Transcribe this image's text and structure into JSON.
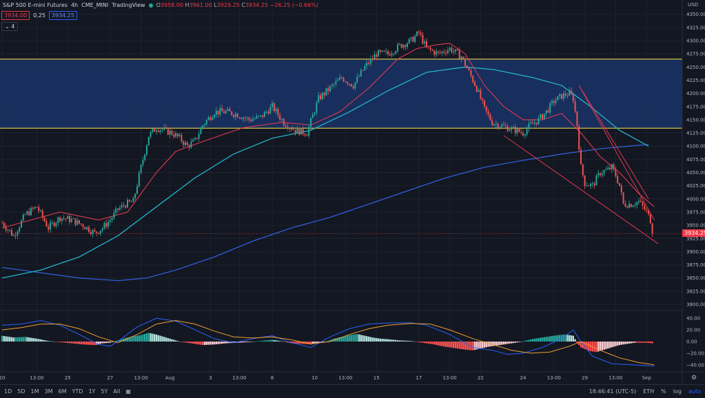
{
  "legend": {
    "symbol": "S&P 500 E-mini Futures",
    "interval": "4h",
    "exchange": "CME_MINI",
    "brand": "TradingView",
    "o_label": "O",
    "o": "3958.00",
    "h_label": "H",
    "h": "3961.00",
    "l_label": "L",
    "l": "3929.25",
    "c_label": "C",
    "c": "3934.25",
    "change": "−26.25 (−0.66%)"
  },
  "quote": {
    "bid": "3934.00",
    "spread": "0.25",
    "ask": "3934.25"
  },
  "indicators_toggle": "4",
  "currency": "USD",
  "last_price": "3934.25",
  "bottom": {
    "ranges": [
      "1D",
      "5D",
      "1M",
      "3M",
      "6M",
      "YTD",
      "1Y",
      "5Y",
      "All"
    ],
    "clock": "18:46:41 (UTC-5)",
    "session": "ETH",
    "percent": "%",
    "log": "log",
    "auto": "auto"
  },
  "colors": {
    "background": "#131722",
    "up": "#26a69a",
    "down": "#ef5350",
    "zone_fill": "#1a3266",
    "zone_line": "#e8d44d",
    "ema_short": "#e03a50",
    "ema_mid": "#22b4c8",
    "ema_long": "#2f5ed8",
    "macd_line": "#2962ff",
    "signal_line": "#f0a030",
    "wedge": "#e03a50"
  },
  "chart_data": {
    "type": "candlestick",
    "price_axis": {
      "ylim": [
        3787,
        4377
      ],
      "ticks": [
        3800,
        3825,
        3850,
        3875,
        3900,
        3925,
        3950,
        3975,
        4000,
        4025,
        4050,
        4075,
        4100,
        4125,
        4150,
        4175,
        4200,
        4225,
        4250,
        4275,
        4300,
        4325,
        4350
      ]
    },
    "macd_axis": {
      "ylim": [
        -52,
        52
      ],
      "ticks": [
        40,
        20,
        0,
        -20,
        -40
      ],
      "tick_labels": [
        "40.00",
        "20.00",
        "0.00",
        "−20.00",
        "−40.00"
      ]
    },
    "x_ticks": [
      {
        "label": "20",
        "bar": 0
      },
      {
        "label": "13:00",
        "bar": 18
      },
      {
        "label": "25",
        "bar": 34
      },
      {
        "label": "27",
        "bar": 56
      },
      {
        "label": "13:00",
        "bar": 72
      },
      {
        "label": "Aug",
        "bar": 87
      },
      {
        "label": "3",
        "bar": 108
      },
      {
        "label": "13:00",
        "bar": 123
      },
      {
        "label": "8",
        "bar": 140
      },
      {
        "label": "10",
        "bar": 162
      },
      {
        "label": "13:00",
        "bar": 178
      },
      {
        "label": "15",
        "bar": 194
      },
      {
        "label": "17",
        "bar": 216
      },
      {
        "label": "13:00",
        "bar": 232
      },
      {
        "label": "22",
        "bar": 248
      },
      {
        "label": "24",
        "bar": 270
      },
      {
        "label": "13:00",
        "bar": 286
      },
      {
        "label": "29",
        "bar": 302
      },
      {
        "label": "13:00",
        "bar": 318
      },
      {
        "label": "Sep",
        "bar": 334
      }
    ],
    "zone": {
      "top": 4265,
      "bottom": 4134
    },
    "anchors": [
      [
        0,
        3955
      ],
      [
        6,
        3930
      ],
      [
        12,
        3970
      ],
      [
        18,
        3985
      ],
      [
        24,
        3945
      ],
      [
        30,
        3965
      ],
      [
        36,
        3960
      ],
      [
        42,
        3950
      ],
      [
        48,
        3935
      ],
      [
        52,
        3945
      ],
      [
        56,
        3960
      ],
      [
        60,
        3980
      ],
      [
        64,
        3990
      ],
      [
        68,
        3995
      ],
      [
        72,
        4060
      ],
      [
        76,
        4120
      ],
      [
        80,
        4135
      ],
      [
        84,
        4130
      ],
      [
        88,
        4125
      ],
      [
        92,
        4115
      ],
      [
        96,
        4100
      ],
      [
        100,
        4110
      ],
      [
        104,
        4140
      ],
      [
        110,
        4165
      ],
      [
        116,
        4165
      ],
      [
        122,
        4160
      ],
      [
        128,
        4150
      ],
      [
        134,
        4155
      ],
      [
        140,
        4175
      ],
      [
        146,
        4145
      ],
      [
        152,
        4130
      ],
      [
        158,
        4125
      ],
      [
        164,
        4190
      ],
      [
        170,
        4210
      ],
      [
        176,
        4230
      ],
      [
        182,
        4215
      ],
      [
        188,
        4250
      ],
      [
        194,
        4275
      ],
      [
        200,
        4275
      ],
      [
        206,
        4290
      ],
      [
        212,
        4300
      ],
      [
        216,
        4315
      ],
      [
        220,
        4285
      ],
      [
        226,
        4275
      ],
      [
        232,
        4285
      ],
      [
        238,
        4270
      ],
      [
        242,
        4240
      ],
      [
        246,
        4210
      ],
      [
        250,
        4170
      ],
      [
        254,
        4145
      ],
      [
        258,
        4140
      ],
      [
        262,
        4135
      ],
      [
        266,
        4130
      ],
      [
        270,
        4125
      ],
      [
        274,
        4140
      ],
      [
        278,
        4150
      ],
      [
        282,
        4165
      ],
      [
        286,
        4185
      ],
      [
        290,
        4195
      ],
      [
        294,
        4200
      ],
      [
        296,
        4190
      ],
      [
        298,
        4140
      ],
      [
        300,
        4060
      ],
      [
        302,
        4030
      ],
      [
        306,
        4025
      ],
      [
        310,
        4050
      ],
      [
        314,
        4055
      ],
      [
        316,
        4060
      ],
      [
        318,
        4045
      ],
      [
        320,
        4025
      ],
      [
        322,
        3990
      ],
      [
        326,
        3990
      ],
      [
        330,
        3995
      ],
      [
        334,
        3975
      ],
      [
        336,
        3960
      ],
      [
        337,
        3934
      ]
    ],
    "ema_short": [
      [
        0,
        3945
      ],
      [
        15,
        3960
      ],
      [
        30,
        3975
      ],
      [
        50,
        3960
      ],
      [
        65,
        3975
      ],
      [
        80,
        4050
      ],
      [
        90,
        4090
      ],
      [
        105,
        4110
      ],
      [
        125,
        4135
      ],
      [
        145,
        4145
      ],
      [
        160,
        4140
      ],
      [
        175,
        4165
      ],
      [
        190,
        4210
      ],
      [
        205,
        4265
      ],
      [
        215,
        4285
      ],
      [
        225,
        4292
      ],
      [
        232,
        4295
      ],
      [
        240,
        4275
      ],
      [
        250,
        4215
      ],
      [
        260,
        4175
      ],
      [
        270,
        4150
      ],
      [
        280,
        4150
      ],
      [
        290,
        4162
      ],
      [
        300,
        4125
      ],
      [
        310,
        4080
      ],
      [
        320,
        4050
      ],
      [
        330,
        4010
      ],
      [
        338,
        3985
      ]
    ],
    "ema_mid": [
      [
        0,
        3850
      ],
      [
        20,
        3865
      ],
      [
        40,
        3890
      ],
      [
        60,
        3930
      ],
      [
        80,
        3985
      ],
      [
        100,
        4040
      ],
      [
        120,
        4085
      ],
      [
        140,
        4115
      ],
      [
        160,
        4130
      ],
      [
        180,
        4165
      ],
      [
        200,
        4205
      ],
      [
        220,
        4240
      ],
      [
        240,
        4250
      ],
      [
        255,
        4245
      ],
      [
        275,
        4230
      ],
      [
        290,
        4215
      ],
      [
        305,
        4175
      ],
      [
        320,
        4130
      ],
      [
        335,
        4100
      ]
    ],
    "ema_long": [
      [
        0,
        3870
      ],
      [
        20,
        3860
      ],
      [
        40,
        3850
      ],
      [
        60,
        3845
      ],
      [
        75,
        3850
      ],
      [
        90,
        3865
      ],
      [
        110,
        3890
      ],
      [
        130,
        3920
      ],
      [
        150,
        3945
      ],
      [
        170,
        3965
      ],
      [
        190,
        3990
      ],
      [
        210,
        4015
      ],
      [
        230,
        4040
      ],
      [
        250,
        4060
      ],
      [
        270,
        4073
      ],
      [
        290,
        4085
      ],
      [
        310,
        4095
      ],
      [
        325,
        4100
      ],
      [
        335,
        4103
      ]
    ],
    "wedge_upper": [
      [
        299,
        4215
      ],
      [
        335,
        4000
      ]
    ],
    "wedge_upper2": [
      [
        299,
        4215
      ],
      [
        338,
        3960
      ]
    ],
    "wedge_lower": [
      [
        260,
        4120
      ],
      [
        340,
        3915
      ]
    ],
    "macd_hist": [
      [
        0,
        10
      ],
      [
        6,
        7
      ],
      [
        12,
        8
      ],
      [
        18,
        5
      ],
      [
        24,
        1
      ],
      [
        30,
        -1
      ],
      [
        36,
        -3
      ],
      [
        42,
        -5
      ],
      [
        48,
        -6
      ],
      [
        52,
        -3
      ],
      [
        56,
        -2
      ],
      [
        60,
        2
      ],
      [
        64,
        6
      ],
      [
        68,
        9
      ],
      [
        72,
        11
      ],
      [
        76,
        15
      ],
      [
        80,
        12
      ],
      [
        84,
        8
      ],
      [
        88,
        4
      ],
      [
        92,
        0
      ],
      [
        96,
        -2
      ],
      [
        100,
        -4
      ],
      [
        104,
        -6
      ],
      [
        110,
        -5
      ],
      [
        116,
        -3
      ],
      [
        122,
        -2
      ],
      [
        128,
        -1
      ],
      [
        134,
        1
      ],
      [
        140,
        3
      ],
      [
        146,
        0
      ],
      [
        150,
        -3
      ],
      [
        156,
        -4
      ],
      [
        160,
        -5
      ],
      [
        164,
        -2
      ],
      [
        168,
        0
      ],
      [
        172,
        5
      ],
      [
        176,
        8
      ],
      [
        180,
        11
      ],
      [
        184,
        13
      ],
      [
        188,
        10
      ],
      [
        192,
        7
      ],
      [
        196,
        5
      ],
      [
        200,
        4
      ],
      [
        206,
        2
      ],
      [
        212,
        1
      ],
      [
        216,
        -1
      ],
      [
        220,
        -3
      ],
      [
        224,
        -5
      ],
      [
        228,
        -8
      ],
      [
        232,
        -10
      ],
      [
        236,
        -12
      ],
      [
        240,
        -14
      ],
      [
        244,
        -15
      ],
      [
        248,
        -12
      ],
      [
        252,
        -9
      ],
      [
        256,
        -7
      ],
      [
        260,
        -5
      ],
      [
        264,
        -3
      ],
      [
        268,
        -1
      ],
      [
        272,
        2
      ],
      [
        276,
        5
      ],
      [
        280,
        7
      ],
      [
        284,
        9
      ],
      [
        288,
        11
      ],
      [
        292,
        12
      ],
      [
        296,
        10
      ],
      [
        298,
        -2
      ],
      [
        300,
        -10
      ],
      [
        304,
        -16
      ],
      [
        308,
        -18
      ],
      [
        312,
        -14
      ],
      [
        316,
        -10
      ],
      [
        320,
        -6
      ],
      [
        324,
        -4
      ],
      [
        328,
        -2
      ],
      [
        334,
        -2
      ],
      [
        337,
        -3
      ]
    ],
    "macd_line": [
      [
        0,
        28
      ],
      [
        10,
        30
      ],
      [
        20,
        36
      ],
      [
        30,
        28
      ],
      [
        40,
        12
      ],
      [
        50,
        -5
      ],
      [
        56,
        -8
      ],
      [
        62,
        5
      ],
      [
        70,
        25
      ],
      [
        80,
        40
      ],
      [
        90,
        35
      ],
      [
        100,
        20
      ],
      [
        110,
        5
      ],
      [
        120,
        -2
      ],
      [
        130,
        5
      ],
      [
        140,
        10
      ],
      [
        150,
        -2
      ],
      [
        160,
        -10
      ],
      [
        170,
        8
      ],
      [
        180,
        22
      ],
      [
        190,
        30
      ],
      [
        200,
        32
      ],
      [
        212,
        32
      ],
      [
        220,
        28
      ],
      [
        232,
        12
      ],
      [
        244,
        -10
      ],
      [
        254,
        -15
      ],
      [
        262,
        -22
      ],
      [
        270,
        -20
      ],
      [
        280,
        -10
      ],
      [
        290,
        5
      ],
      [
        296,
        20
      ],
      [
        300,
        0
      ],
      [
        306,
        -25
      ],
      [
        316,
        -38
      ],
      [
        326,
        -40
      ],
      [
        338,
        -42
      ]
    ],
    "signal_line": [
      [
        0,
        20
      ],
      [
        10,
        24
      ],
      [
        20,
        30
      ],
      [
        30,
        30
      ],
      [
        40,
        22
      ],
      [
        50,
        8
      ],
      [
        60,
        -2
      ],
      [
        70,
        12
      ],
      [
        80,
        30
      ],
      [
        90,
        36
      ],
      [
        100,
        30
      ],
      [
        110,
        18
      ],
      [
        120,
        8
      ],
      [
        130,
        6
      ],
      [
        140,
        8
      ],
      [
        150,
        3
      ],
      [
        160,
        -4
      ],
      [
        170,
        0
      ],
      [
        180,
        12
      ],
      [
        190,
        22
      ],
      [
        200,
        28
      ],
      [
        212,
        31
      ],
      [
        222,
        30
      ],
      [
        232,
        20
      ],
      [
        244,
        5
      ],
      [
        254,
        -5
      ],
      [
        264,
        -15
      ],
      [
        274,
        -20
      ],
      [
        284,
        -18
      ],
      [
        294,
        -8
      ],
      [
        300,
        0
      ],
      [
        310,
        -15
      ],
      [
        320,
        -28
      ],
      [
        330,
        -36
      ],
      [
        338,
        -40
      ]
    ]
  }
}
